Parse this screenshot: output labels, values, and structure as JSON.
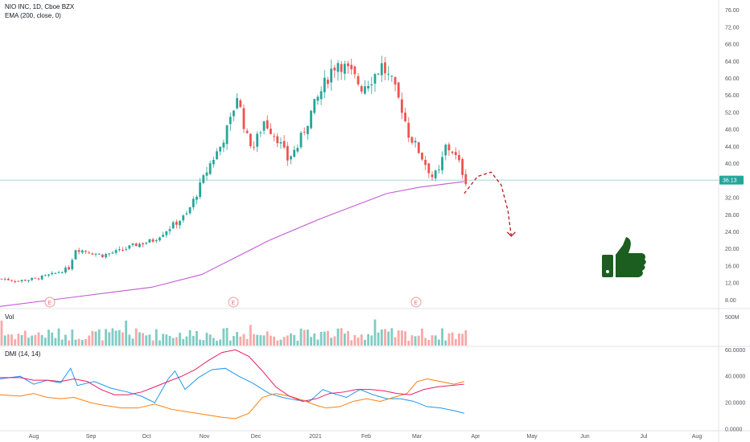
{
  "legend": {
    "symbol": "NIO INC, 1D, Cboe BZX",
    "ema": "EMA (200, close, 0)",
    "vol": "Vol",
    "dmi": "DMI (14, 14)"
  },
  "colors": {
    "up": "#26a69a",
    "down": "#ef5350",
    "ema": "#c45ad6",
    "dmi_plus": "#2196f3",
    "dmi_minus": "#ff7f0e",
    "adx": "#e91e63",
    "arrow": "#b71c1c",
    "thumb": "#1b5e20",
    "price_label": "#26a69a"
  },
  "icons": {
    "thumb": "thumbs-up-icon",
    "arrow": "dashed-curved-arrow-icon",
    "earnings": "earnings-marker-icon"
  },
  "chart_data": [
    {
      "type": "candlestick",
      "title": "NIO INC, 1D, Cboe BZX",
      "indicator": "EMA (200, close, 0)",
      "y_ticks": [
        "76.00",
        "72.00",
        "68.00",
        "64.00",
        "60.00",
        "56.00",
        "52.00",
        "48.00",
        "44.00",
        "40.00",
        "32.00",
        "28.00",
        "24.00",
        "20.00",
        "16.00",
        "12.00",
        "8.00"
      ],
      "ylim": [
        6,
        78
      ],
      "last_price": "36.13",
      "x_ticks": [
        "Aug",
        "Sep",
        "Oct",
        "Nov",
        "Dec",
        "2021",
        "Feb",
        "Mar",
        "Apr",
        "May",
        "Jun",
        "Jul",
        "Aug"
      ],
      "earnings_markers": [
        "E",
        "E",
        "E"
      ],
      "price_path": [
        [
          0,
          13
        ],
        [
          5,
          12.5
        ],
        [
          10,
          13
        ],
        [
          15,
          14
        ],
        [
          20,
          15.5
        ],
        [
          22,
          20
        ],
        [
          25,
          19.5
        ],
        [
          30,
          18.5
        ],
        [
          35,
          19.5
        ],
        [
          40,
          21
        ],
        [
          45,
          22
        ],
        [
          50,
          25
        ],
        [
          55,
          28
        ],
        [
          58,
          33
        ],
        [
          62,
          40
        ],
        [
          65,
          44
        ],
        [
          68,
          50
        ],
        [
          70,
          56
        ],
        [
          73,
          46
        ],
        [
          75,
          44
        ],
        [
          78,
          50
        ],
        [
          82,
          46
        ],
        [
          85,
          41
        ],
        [
          88,
          44
        ],
        [
          92,
          52
        ],
        [
          95,
          57
        ],
        [
          98,
          62
        ],
        [
          100,
          64
        ],
        [
          104,
          61
        ],
        [
          107,
          58
        ],
        [
          110,
          60
        ],
        [
          113,
          63
        ],
        [
          116,
          59
        ],
        [
          119,
          53
        ],
        [
          121,
          47
        ],
        [
          124,
          43
        ],
        [
          126,
          40
        ],
        [
          128,
          37
        ],
        [
          130,
          38
        ],
        [
          132,
          44
        ],
        [
          134,
          43
        ],
        [
          136,
          40
        ],
        [
          138,
          36
        ]
      ],
      "ema_path": [
        [
          0,
          6.5
        ],
        [
          20,
          8.5
        ],
        [
          45,
          11
        ],
        [
          60,
          14
        ],
        [
          70,
          18
        ],
        [
          80,
          22
        ],
        [
          95,
          27
        ],
        [
          105,
          30
        ],
        [
          115,
          33
        ],
        [
          125,
          34.5
        ],
        [
          138,
          35.8
        ]
      ],
      "projection_path": [
        [
          138,
          33
        ],
        [
          142,
          37
        ],
        [
          146,
          38
        ],
        [
          149,
          35
        ],
        [
          151,
          29
        ],
        [
          152,
          23
        ]
      ]
    },
    {
      "type": "bar",
      "title": "Vol",
      "y_ticks": [
        "500M"
      ]
    },
    {
      "type": "line",
      "title": "DMI (14, 14)",
      "y_ticks": [
        "60.0000",
        "40.0000",
        "20.0000",
        "0.0000"
      ],
      "ylim": [
        0,
        62
      ],
      "series": [
        {
          "values": [
            [
              0,
              38
            ],
            [
              6,
              40
            ],
            [
              10,
              34
            ],
            [
              14,
              37
            ],
            [
              18,
              35
            ],
            [
              21,
              46
            ],
            [
              23,
              33
            ],
            [
              28,
              36
            ],
            [
              33,
              31
            ],
            [
              38,
              28
            ],
            [
              42,
              25
            ],
            [
              46,
              20
            ],
            [
              50,
              38
            ],
            [
              52,
              44
            ],
            [
              55,
              30
            ],
            [
              59,
              39
            ],
            [
              63,
              45
            ],
            [
              67,
              46
            ],
            [
              71,
              40
            ],
            [
              75,
              35
            ],
            [
              80,
              27
            ],
            [
              84,
              24
            ],
            [
              88,
              22
            ],
            [
              92,
              21
            ],
            [
              96,
              30
            ],
            [
              99,
              27
            ],
            [
              103,
              24
            ],
            [
              107,
              30
            ],
            [
              111,
              26
            ],
            [
              115,
              23
            ],
            [
              119,
              23
            ],
            [
              123,
              21
            ],
            [
              127,
              17
            ],
            [
              131,
              16
            ],
            [
              135,
              14
            ],
            [
              138,
              12
            ]
          ]
        },
        {
          "values": [
            [
              0,
              26
            ],
            [
              6,
              25
            ],
            [
              10,
              27
            ],
            [
              14,
              24
            ],
            [
              18,
              23
            ],
            [
              22,
              24
            ],
            [
              27,
              20
            ],
            [
              31,
              18
            ],
            [
              36,
              16
            ],
            [
              41,
              16
            ],
            [
              46,
              19
            ],
            [
              51,
              15
            ],
            [
              56,
              13
            ],
            [
              61,
              11
            ],
            [
              66,
              9
            ],
            [
              70,
              8
            ],
            [
              74,
              12
            ],
            [
              78,
              24
            ],
            [
              82,
              27
            ],
            [
              86,
              25
            ],
            [
              90,
              22
            ],
            [
              94,
              18
            ],
            [
              97,
              16
            ],
            [
              101,
              17
            ],
            [
              105,
              21
            ],
            [
              109,
              23
            ],
            [
              113,
              21
            ],
            [
              117,
              24
            ],
            [
              121,
              27
            ],
            [
              124,
              36
            ],
            [
              127,
              38
            ],
            [
              131,
              36
            ],
            [
              135,
              34
            ],
            [
              138,
              36
            ]
          ]
        },
        {
          "values": [
            [
              0,
              39
            ],
            [
              6,
              39
            ],
            [
              10,
              37
            ],
            [
              14,
              37
            ],
            [
              18,
              36
            ],
            [
              22,
              38
            ],
            [
              26,
              36
            ],
            [
              30,
              30
            ],
            [
              34,
              26
            ],
            [
              38,
              26
            ],
            [
              42,
              28
            ],
            [
              46,
              32
            ],
            [
              50,
              36
            ],
            [
              54,
              40
            ],
            [
              58,
              45
            ],
            [
              62,
              52
            ],
            [
              66,
              58
            ],
            [
              70,
              60
            ],
            [
              74,
              55
            ],
            [
              78,
              44
            ],
            [
              82,
              32
            ],
            [
              86,
              25
            ],
            [
              90,
              21
            ],
            [
              94,
              23
            ],
            [
              98,
              27
            ],
            [
              102,
              28
            ],
            [
              106,
              30
            ],
            [
              110,
              30
            ],
            [
              114,
              29
            ],
            [
              118,
              27
            ],
            [
              122,
              26
            ],
            [
              126,
              30
            ],
            [
              130,
              32
            ],
            [
              134,
              33
            ],
            [
              138,
              34
            ]
          ]
        }
      ]
    }
  ]
}
